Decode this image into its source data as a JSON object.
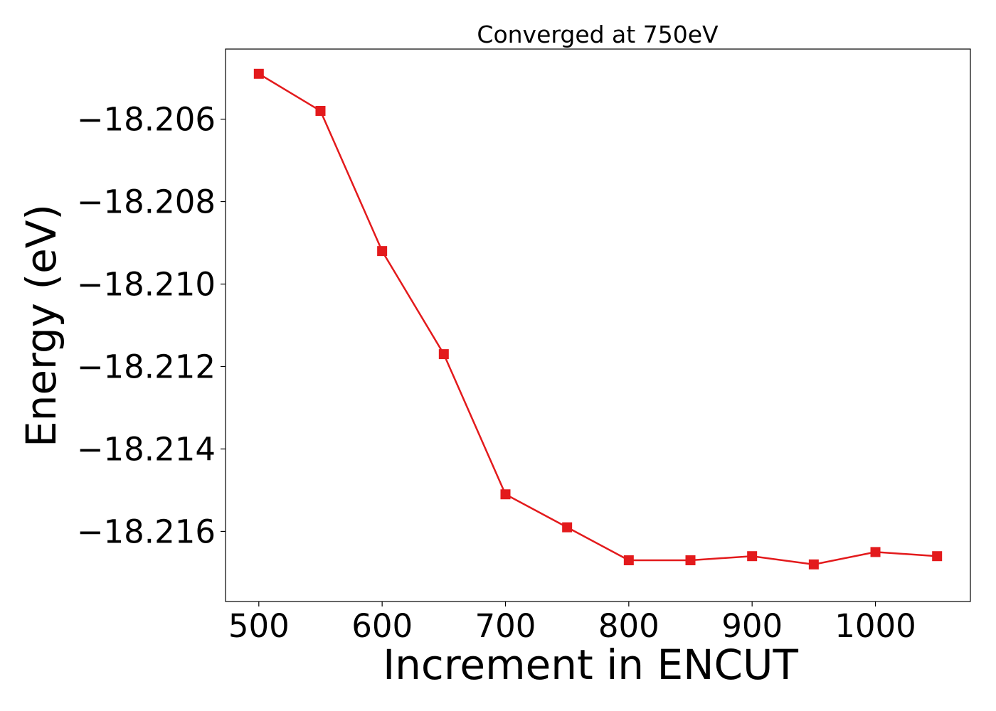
{
  "chart_data": {
    "type": "line",
    "title": "Converged at 750eV",
    "xlabel": "Increment in ENCUT",
    "ylabel": "Energy (eV)",
    "x": [
      500,
      550,
      600,
      650,
      700,
      750,
      800,
      850,
      900,
      950,
      1000,
      1050
    ],
    "series": [
      {
        "values": [
          -18.2049,
          -18.2058,
          -18.2092,
          -18.2117,
          -18.2151,
          -18.2159,
          -18.2167,
          -18.2167,
          -18.2166,
          -18.2168,
          -18.2165,
          -18.2166
        ]
      }
    ],
    "xlim": [
      473,
      1077
    ],
    "ylim": [
      -18.2177,
      -18.2043
    ],
    "xticks": [
      500,
      600,
      700,
      800,
      900,
      1000
    ],
    "xtick_labels": [
      "500",
      "600",
      "700",
      "800",
      "900",
      "1000"
    ],
    "yticks": [
      -18.206,
      -18.208,
      -18.21,
      -18.212,
      -18.214,
      -18.216
    ],
    "ytick_labels": [
      "−18.206",
      "−18.208",
      "−18.210",
      "−18.212",
      "−18.214",
      "−18.216"
    ],
    "marker": "square",
    "line_color": "#e31a1c",
    "grid": false,
    "legend": "none"
  }
}
